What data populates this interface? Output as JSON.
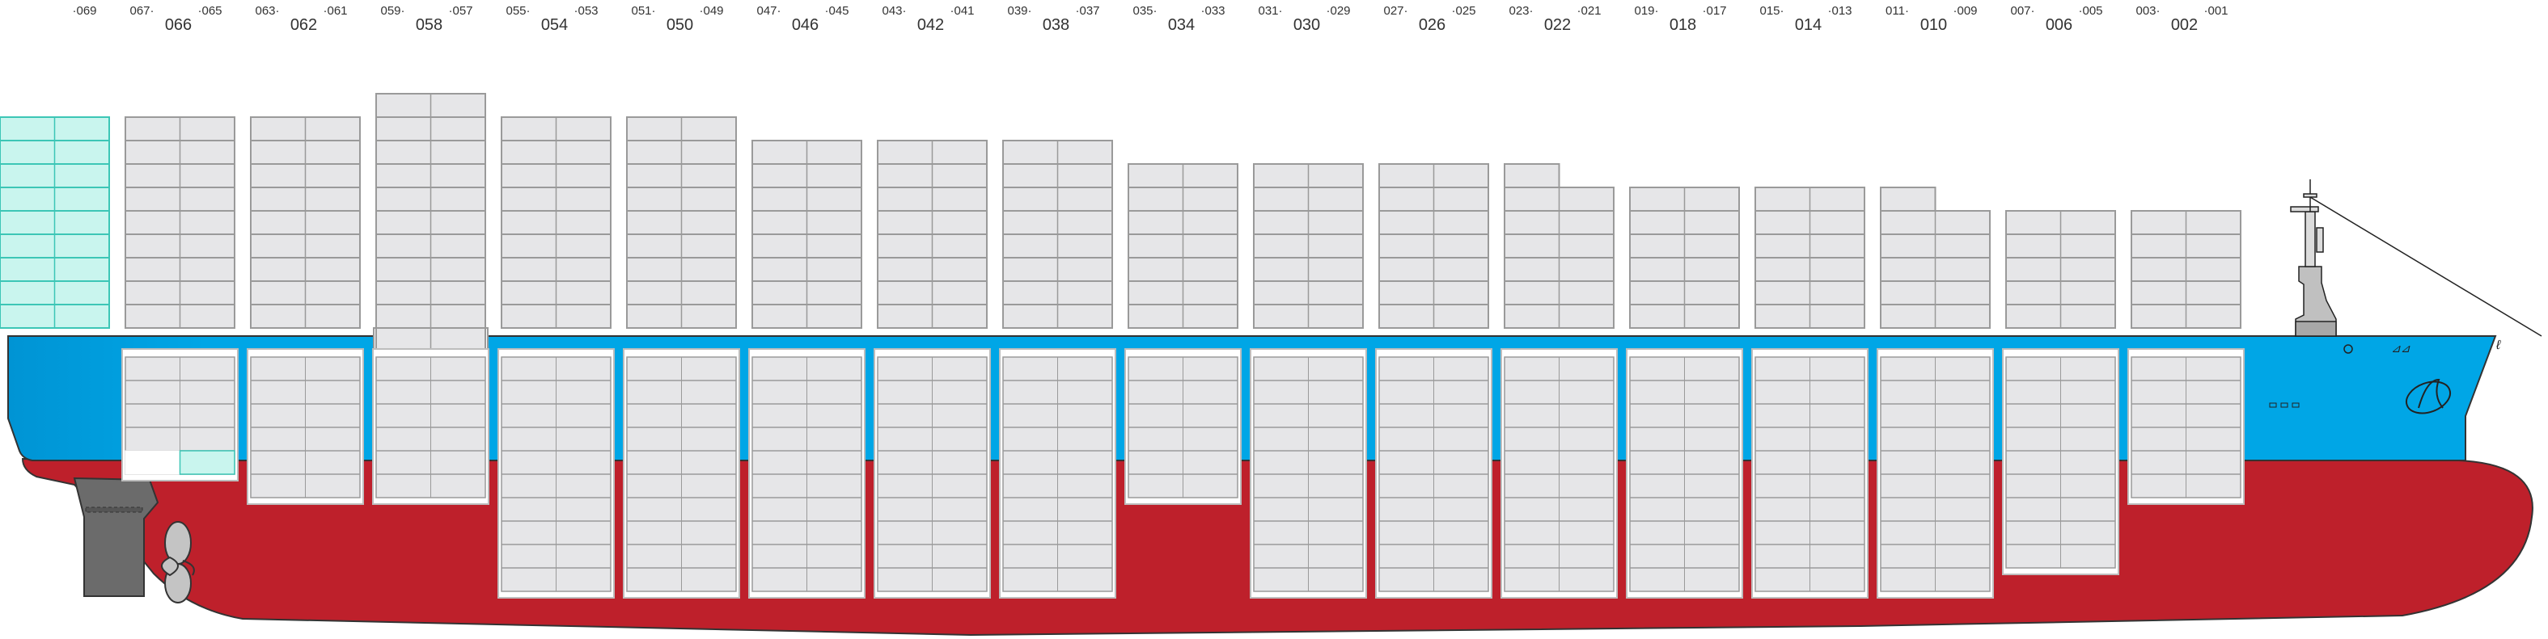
{
  "colors": {
    "hull_red": "#be202b",
    "hull_blue": "#00a6e6",
    "hull_blue_dark": "#0090d0",
    "container_fill": "#e6e6e8",
    "container_stroke": "#9a9a9a",
    "highlight_fill": "#c9f5ee",
    "highlight_stroke": "#3cc6b6",
    "hold_fill": "#ffffff",
    "machinery_gray": "#6b6b6b",
    "propeller_gray": "#c4c4c4"
  },
  "bay_labels": [
    {
      "even": "",
      "left": "",
      "right": "·069"
    },
    {
      "even": "066",
      "left": "067·",
      "right": "·065"
    },
    {
      "even": "062",
      "left": "063·",
      "right": "·061"
    },
    {
      "even": "058",
      "left": "059·",
      "right": "·057"
    },
    {
      "even": "054",
      "left": "055·",
      "right": "·053"
    },
    {
      "even": "050",
      "left": "051·",
      "right": "·049"
    },
    {
      "even": "046",
      "left": "047·",
      "right": "·045"
    },
    {
      "even": "042",
      "left": "043·",
      "right": "·041"
    },
    {
      "even": "038",
      "left": "039·",
      "right": "·037"
    },
    {
      "even": "034",
      "left": "035·",
      "right": "·033"
    },
    {
      "even": "030",
      "left": "031·",
      "right": "·029"
    },
    {
      "even": "026",
      "left": "027·",
      "right": "·025"
    },
    {
      "even": "022",
      "left": "023·",
      "right": "·021"
    },
    {
      "even": "018",
      "left": "019·",
      "right": "·017"
    },
    {
      "even": "014",
      "left": "015·",
      "right": "·013"
    },
    {
      "even": "010",
      "left": "011·",
      "right": "·009"
    },
    {
      "even": "006",
      "left": "007·",
      "right": "·005"
    },
    {
      "even": "002",
      "left": "003·",
      "right": "·001"
    }
  ],
  "deck_stacks": [
    {
      "bay": "069",
      "tiers": 9,
      "highlight": true
    },
    {
      "bay": "066",
      "tiers": 9
    },
    {
      "bay": "062",
      "tiers": 9
    },
    {
      "bay": "058",
      "tiers": 10
    },
    {
      "bay": "054",
      "tiers": 9
    },
    {
      "bay": "050",
      "tiers": 9
    },
    {
      "bay": "046",
      "tiers": 8
    },
    {
      "bay": "042",
      "tiers": 8
    },
    {
      "bay": "038",
      "tiers": 8
    },
    {
      "bay": "034",
      "tiers": 7
    },
    {
      "bay": "030",
      "tiers": 7
    },
    {
      "bay": "026",
      "tiers": 7
    },
    {
      "bay": "022",
      "tiers": 6,
      "extra_left_tier": true
    },
    {
      "bay": "018",
      "tiers": 6
    },
    {
      "bay": "014",
      "tiers": 6
    },
    {
      "bay": "010",
      "tiers": 5,
      "extra_left_tier": true
    },
    {
      "bay": "006",
      "tiers": 5
    },
    {
      "bay": "002",
      "tiers": 5
    }
  ],
  "hold_stacks": [
    {
      "bay": "066",
      "tiers": 5,
      "highlight_cell": true
    },
    {
      "bay": "062",
      "tiers": 6
    },
    {
      "bay": "058",
      "tiers": 6
    },
    {
      "bay": "054",
      "tiers": 10
    },
    {
      "bay": "050",
      "tiers": 10
    },
    {
      "bay": "046",
      "tiers": 10
    },
    {
      "bay": "042",
      "tiers": 10
    },
    {
      "bay": "038",
      "tiers": 10
    },
    {
      "bay": "034",
      "tiers": 6
    },
    {
      "bay": "030",
      "tiers": 10
    },
    {
      "bay": "026",
      "tiers": 10
    },
    {
      "bay": "022",
      "tiers": 10
    },
    {
      "bay": "018",
      "tiers": 10
    },
    {
      "bay": "014",
      "tiers": 10
    },
    {
      "bay": "010",
      "tiers": 10
    },
    {
      "bay": "006",
      "tiers": 9
    },
    {
      "bay": "002",
      "tiers": 6
    }
  ]
}
